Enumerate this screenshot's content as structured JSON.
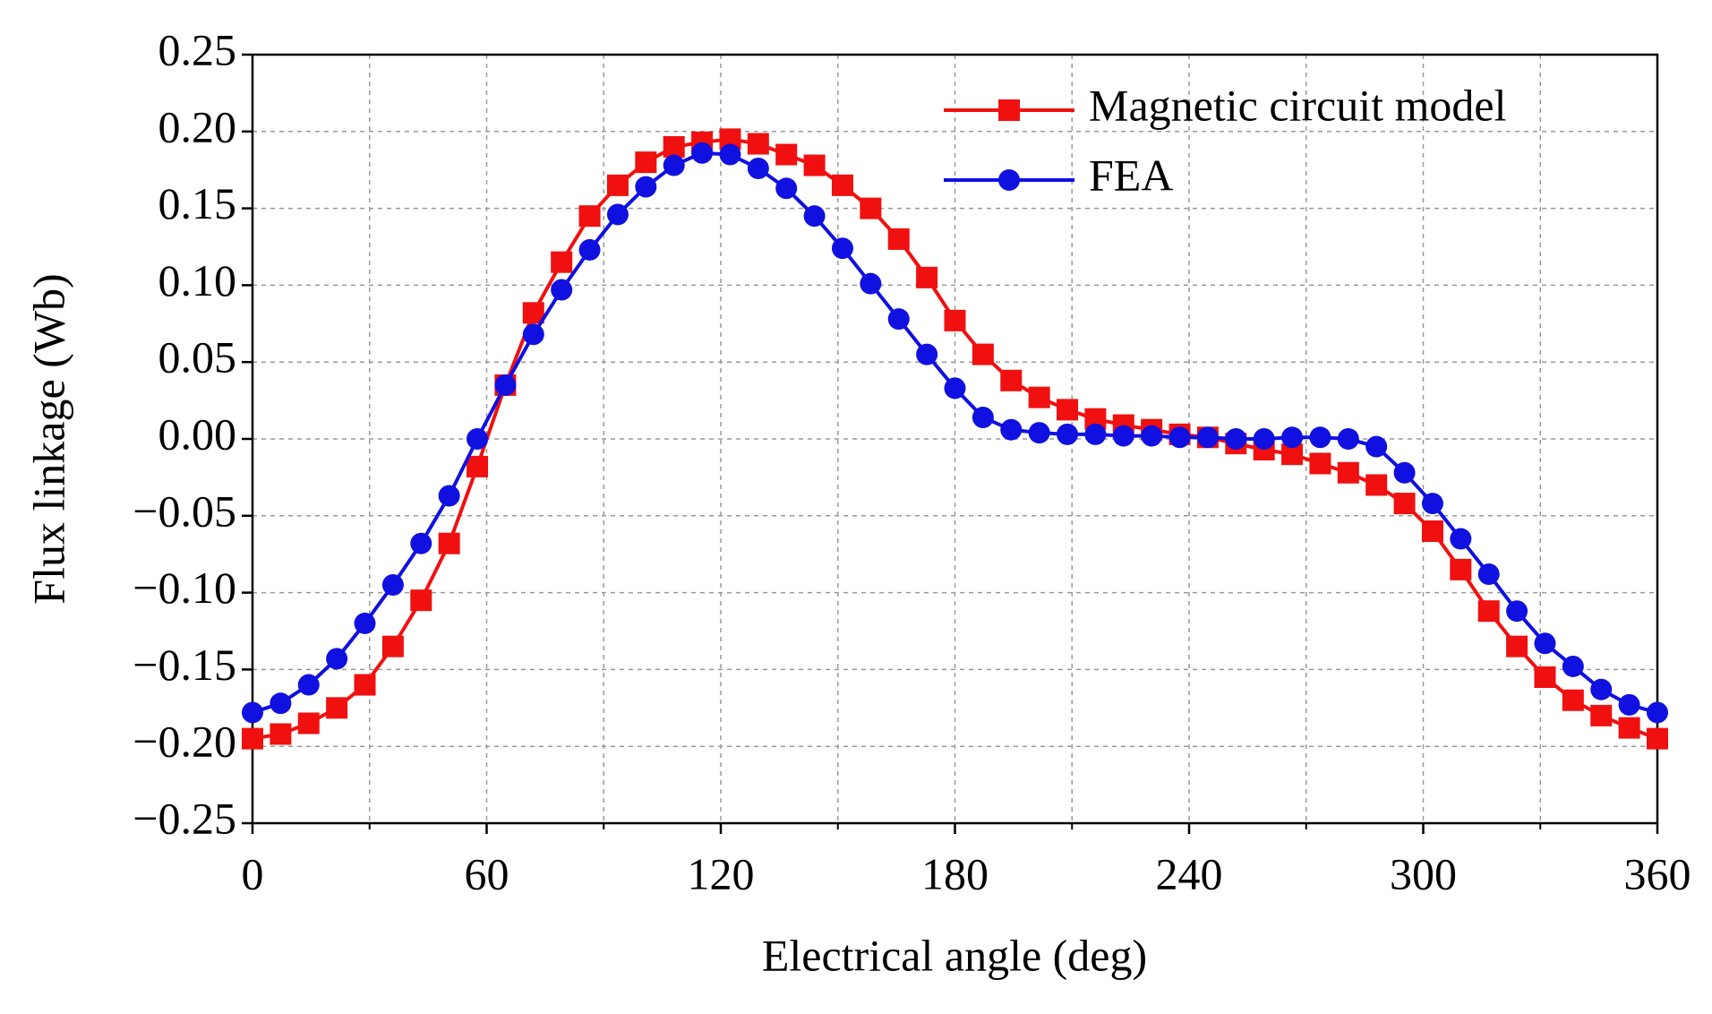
{
  "chart_data": {
    "type": "line",
    "xlabel": "Electrical angle (deg)",
    "ylabel": "Flux linkage (Wb)",
    "x": [
      0,
      7.2,
      14.4,
      21.6,
      28.8,
      36,
      43.2,
      50.4,
      57.6,
      64.8,
      72,
      79.2,
      86.4,
      93.6,
      100.8,
      108,
      115.2,
      122.4,
      129.6,
      136.8,
      144,
      151.2,
      158.4,
      165.6,
      172.8,
      180,
      187.2,
      194.4,
      201.6,
      208.8,
      216,
      223.2,
      230.4,
      237.6,
      244.8,
      252,
      259.2,
      266.4,
      273.6,
      280.8,
      288,
      295.2,
      302.4,
      309.6,
      316.8,
      324,
      331.2,
      338.4,
      345.6,
      352.8,
      360
    ],
    "series": [
      {
        "name": "Magnetic circuit model",
        "color": "#f01010",
        "marker": "square",
        "values": [
          -0.195,
          -0.192,
          -0.185,
          -0.175,
          -0.16,
          -0.135,
          -0.105,
          -0.068,
          -0.018,
          0.035,
          0.082,
          0.115,
          0.145,
          0.165,
          0.18,
          0.19,
          0.193,
          0.195,
          0.192,
          0.185,
          0.178,
          0.165,
          0.15,
          0.13,
          0.105,
          0.077,
          0.055,
          0.038,
          0.027,
          0.019,
          0.013,
          0.009,
          0.006,
          0.003,
          0.001,
          -0.003,
          -0.007,
          -0.01,
          -0.016,
          -0.022,
          -0.03,
          -0.042,
          -0.06,
          -0.085,
          -0.112,
          -0.135,
          -0.155,
          -0.17,
          -0.18,
          -0.188,
          -0.195
        ]
      },
      {
        "name": "FEA",
        "color": "#1010e0",
        "marker": "circle",
        "values": [
          -0.178,
          -0.172,
          -0.16,
          -0.143,
          -0.12,
          -0.095,
          -0.068,
          -0.037,
          0.0,
          0.035,
          0.068,
          0.097,
          0.123,
          0.146,
          0.164,
          0.178,
          0.186,
          0.185,
          0.176,
          0.163,
          0.145,
          0.124,
          0.101,
          0.078,
          0.055,
          0.033,
          0.014,
          0.006,
          0.004,
          0.003,
          0.003,
          0.002,
          0.002,
          0.001,
          0.001,
          0.0,
          0.0,
          0.001,
          0.001,
          0.0,
          -0.005,
          -0.022,
          -0.042,
          -0.065,
          -0.088,
          -0.112,
          -0.133,
          -0.148,
          -0.163,
          -0.173,
          -0.178
        ]
      }
    ],
    "xlim": [
      0,
      360
    ],
    "xticks": [
      0,
      60,
      120,
      180,
      240,
      300,
      360
    ],
    "xminorticks": [
      30,
      90,
      150,
      210,
      270,
      330
    ],
    "ylim": [
      -0.25,
      0.25
    ],
    "yticks": [
      {
        "value": -0.25,
        "label": "−0.25"
      },
      {
        "value": -0.2,
        "label": "−0.20"
      },
      {
        "value": -0.15,
        "label": "−0.15"
      },
      {
        "value": -0.1,
        "label": "−0.10"
      },
      {
        "value": -0.05,
        "label": "−0.05"
      },
      {
        "value": 0,
        "label": "0.00"
      },
      {
        "value": 0.05,
        "label": "0.05"
      },
      {
        "value": 0.1,
        "label": "0.10"
      },
      {
        "value": 0.15,
        "label": "0.15"
      },
      {
        "value": 0.2,
        "label": "0.20"
      },
      {
        "value": 0.25,
        "label": "0.25"
      }
    ],
    "grid": true,
    "legend": "upper right"
  }
}
